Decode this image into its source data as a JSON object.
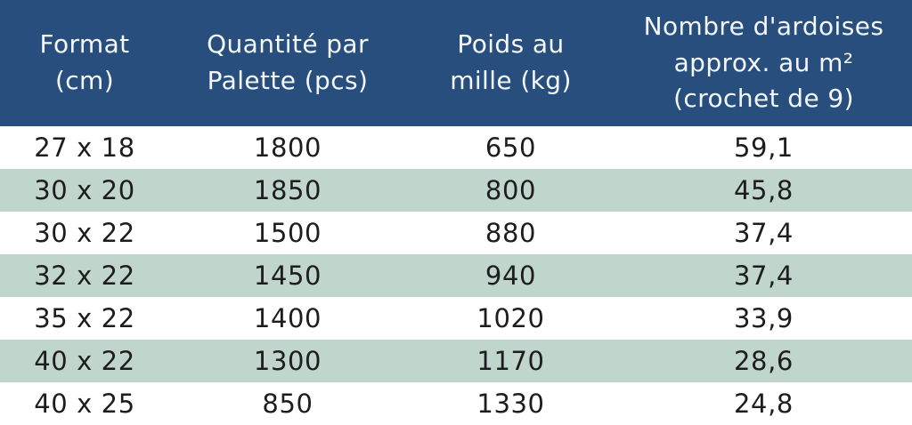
{
  "chart_data": {
    "type": "table",
    "title": "",
    "columns": [
      "Format (cm)",
      "Quantité par Palette (pcs)",
      "Poids au mille (kg)",
      "Nombre d'ardoises approx. au m² (crochet de 9)"
    ],
    "header_lines": [
      [
        "Format",
        "(cm)"
      ],
      [
        "Quantité par",
        "Palette (pcs)"
      ],
      [
        "Poids au",
        "mille (kg)"
      ],
      [
        "Nombre d'ardoises",
        "approx. au m²",
        "(crochet de 9)"
      ]
    ],
    "rows": [
      [
        "27 x 18",
        "1800",
        "650",
        "59,1"
      ],
      [
        "30 x 20",
        "1850",
        "800",
        "45,8"
      ],
      [
        "30 x 22",
        "1500",
        "880",
        "37,4"
      ],
      [
        "32 x 22",
        "1450",
        "940",
        "37,4"
      ],
      [
        "35 x 22",
        "1400",
        "1020",
        "33,9"
      ],
      [
        "40 x 22",
        "1300",
        "1170",
        "28,6"
      ],
      [
        "40 x 25",
        "850",
        "1330",
        "24,8"
      ]
    ],
    "layout": {
      "row_striping": "white / sage alternating, first data row white",
      "alignment": "center"
    }
  },
  "colors": {
    "header_bg": "#274e7d",
    "header_text": "#f4f8fb",
    "row_alt_bg": "#c0d6cd",
    "row_bg": "#ffffff",
    "cell_text": "#1d1d1f"
  }
}
